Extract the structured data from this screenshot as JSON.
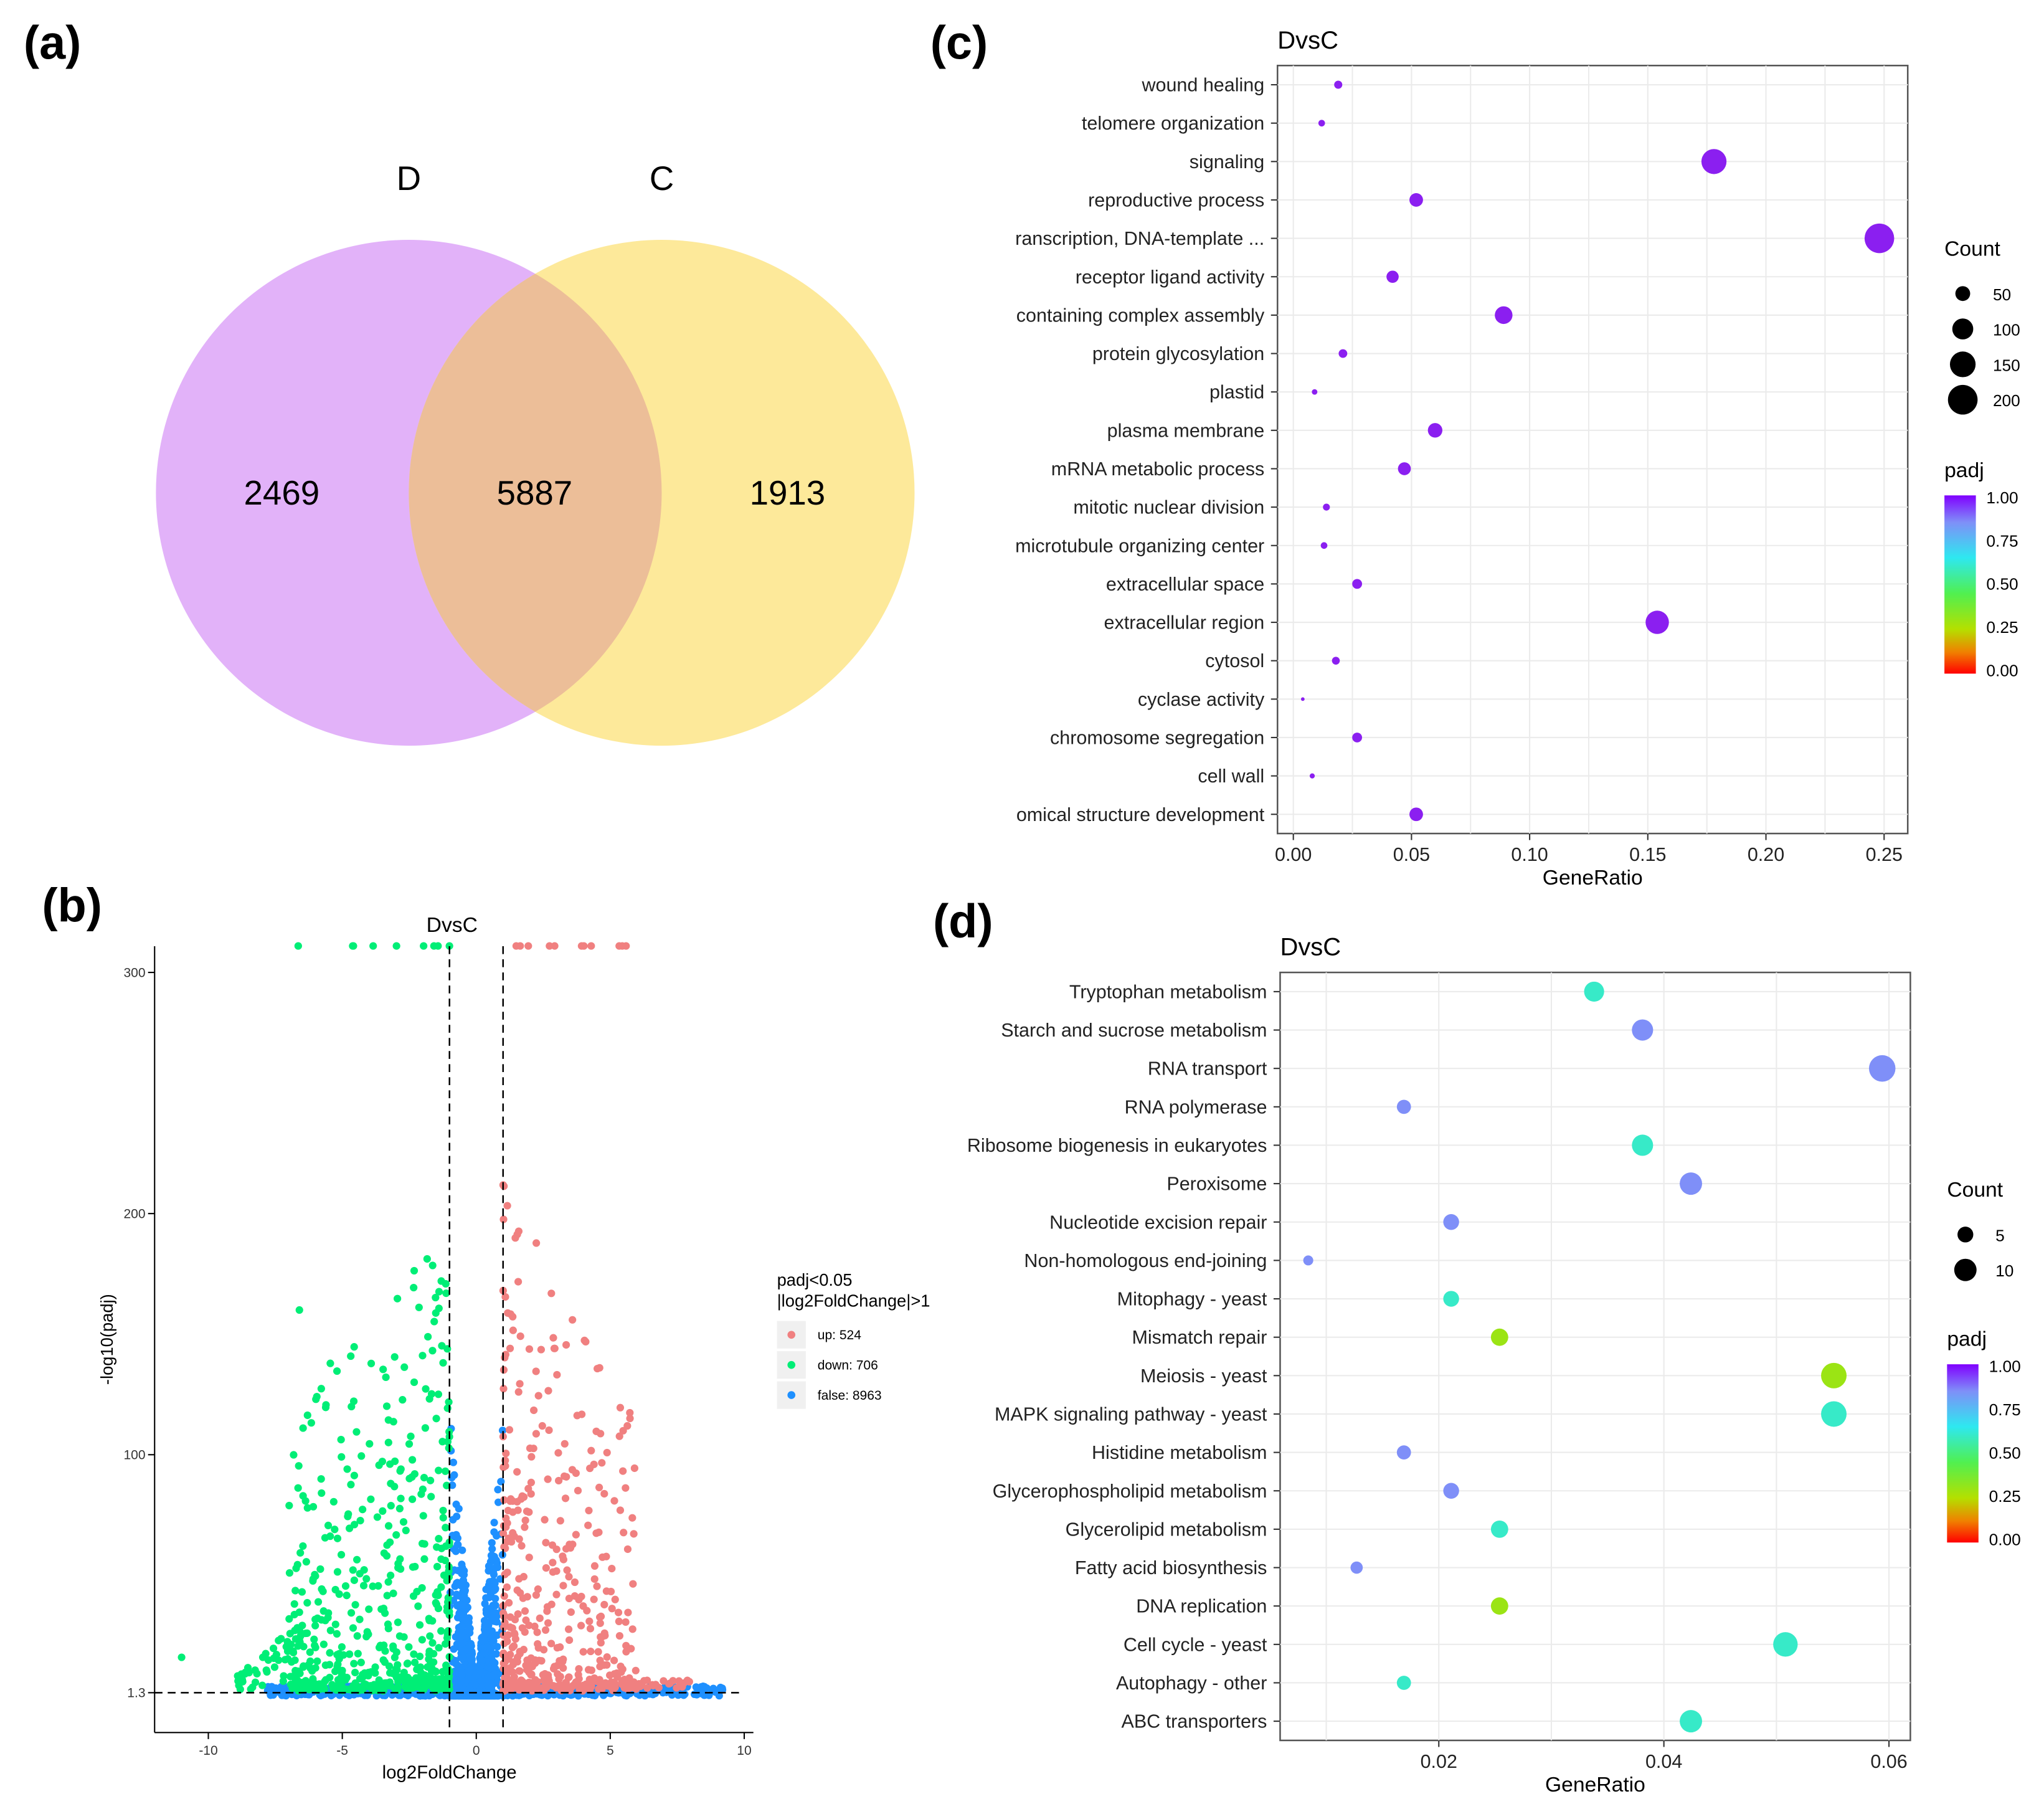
{
  "panels": {
    "a": "(a)",
    "b": "(b)",
    "c": "(c)",
    "d": "(d)"
  },
  "colors": {
    "venn_d": "#e2b2f9",
    "venn_c": "#fde99a",
    "venn_overlap": "#ecbe98",
    "up": "#f08080",
    "down": "#00ee76",
    "false": "#1e90ff",
    "c_dot": "#8b1ff0"
  },
  "chart_data": [
    {
      "panel": "a",
      "type": "venn",
      "sets": [
        "D",
        "C"
      ],
      "values": {
        "D_only": 2469,
        "both": 5887,
        "C_only": 1913
      }
    },
    {
      "panel": "b",
      "type": "scatter",
      "title": "DvsC",
      "xlabel": "log2FoldChange",
      "ylabel": "-log10(padj)",
      "xticks": [
        "-10",
        "-5",
        "0",
        "5",
        "10"
      ],
      "xtick_values": [
        -10,
        -5,
        0,
        5,
        10
      ],
      "yticks": [
        "1.3",
        "100",
        "200",
        "300"
      ],
      "ytick_values": [
        1.3,
        100,
        200,
        300
      ],
      "xlim": [
        -12,
        10
      ],
      "ylim": [
        -15,
        311
      ],
      "thresholds": {
        "log2fc": [
          -1,
          1
        ],
        "neg_log10_padj": 1.3
      },
      "legend_title": [
        "padj<0.05",
        "|log2FoldChange|>1"
      ],
      "legend": [
        {
          "key": "up",
          "label": "up: 524",
          "count": 524
        },
        {
          "key": "down",
          "label": "down: 706",
          "count": 706
        },
        {
          "key": "false",
          "label": "false: 8963",
          "count": 8963
        }
      ],
      "legend_placement": "right"
    },
    {
      "panel": "c",
      "type": "scatter",
      "title": "DvsC",
      "xlabel": "GeneRatio",
      "xticks": [
        "0.00",
        "0.05",
        "0.10",
        "0.15",
        "0.20",
        "0.25"
      ],
      "xtick_values": [
        0,
        0.05,
        0.1,
        0.15,
        0.2,
        0.25
      ],
      "xlim": [
        -0.0067,
        0.26
      ],
      "terms": [
        "wound healing",
        "telomere organization",
        "signaling",
        "reproductive process",
        "ranscription, DNA-template ...",
        "receptor ligand activity",
        "containing complex assembly",
        "protein glycosylation",
        "plastid",
        "plasma membrane",
        "mRNA metabolic process",
        "mitotic nuclear division",
        "microtubule organizing center",
        "extracellular space",
        "extracellular region",
        "cytosol",
        "cyclase activity",
        "chromosome segregation",
        "cell wall",
        "omical structure development"
      ],
      "gene_ratio": [
        0.019,
        0.012,
        0.178,
        0.052,
        0.248,
        0.042,
        0.089,
        0.021,
        0.009,
        0.06,
        0.047,
        0.014,
        0.013,
        0.027,
        0.154,
        0.018,
        0.004,
        0.027,
        0.008,
        0.052
      ],
      "count": [
        15,
        10,
        143,
        42,
        199,
        34,
        71,
        17,
        7,
        48,
        38,
        11,
        10,
        22,
        124,
        14,
        3,
        22,
        6,
        42
      ],
      "padj": [
        1,
        1,
        1,
        1,
        1,
        1,
        1,
        1,
        1,
        1,
        1,
        1,
        1,
        1,
        1,
        1,
        1,
        1,
        1,
        1
      ],
      "size_legend_title": "Count",
      "size_legend": [
        "50",
        "100",
        "150",
        "200"
      ],
      "size_legend_values": [
        50,
        100,
        150,
        200
      ],
      "color_legend_title": "padj",
      "color_legend": [
        "1.00",
        "0.75",
        "0.50",
        "0.25",
        "0.00"
      ],
      "color_legend_values": [
        1,
        0.75,
        0.5,
        0.25,
        0
      ]
    },
    {
      "panel": "d",
      "type": "scatter",
      "title": "DvsC",
      "xlabel": "GeneRatio",
      "xticks": [
        "0.02",
        "0.04",
        "0.06"
      ],
      "xtick_values": [
        0.02,
        0.04,
        0.06
      ],
      "xlim": [
        0.0059,
        0.0619
      ],
      "terms": [
        "Tryptophan metabolism",
        "Starch and sucrose metabolism",
        "RNA transport",
        "RNA polymerase",
        "Ribosome biogenesis in eukaryotes",
        "Peroxisome",
        "Nucleotide excision repair",
        "Non-homologous end-joining",
        "Mitophagy - yeast",
        "Mismatch repair",
        "Meiosis - yeast",
        "MAPK signaling pathway - yeast",
        "Histidine metabolism",
        "Glycerophospholipid metabolism",
        "Glycerolipid metabolism",
        "Fatty acid biosynthesis",
        "DNA replication",
        "Cell cycle - yeast",
        "Autophagy - other",
        "ABC transporters"
      ],
      "gene_ratio": [
        0.0338,
        0.0381,
        0.0594,
        0.0169,
        0.0381,
        0.0424,
        0.0211,
        0.0084,
        0.0211,
        0.0254,
        0.0551,
        0.0551,
        0.0169,
        0.0211,
        0.0254,
        0.0127,
        0.0254,
        0.0508,
        0.0169,
        0.0424
      ],
      "count": [
        8,
        9,
        14,
        4,
        9,
        10,
        5,
        2,
        5,
        6,
        13,
        13,
        4,
        5,
        6,
        3,
        6,
        12,
        4,
        10
      ],
      "padj": [
        0.6,
        0.85,
        0.85,
        0.85,
        0.6,
        0.85,
        0.85,
        0.85,
        0.6,
        0.3,
        0.3,
        0.6,
        0.85,
        0.85,
        0.6,
        0.85,
        0.3,
        0.6,
        0.6,
        0.6
      ],
      "size_legend_title": "Count",
      "size_legend": [
        "5",
        "10"
      ],
      "size_legend_values": [
        5,
        10
      ],
      "color_legend_title": "padj",
      "color_legend": [
        "1.00",
        "0.75",
        "0.50",
        "0.25",
        "0.00"
      ],
      "color_legend_values": [
        1,
        0.75,
        0.5,
        0.25,
        0
      ]
    }
  ]
}
